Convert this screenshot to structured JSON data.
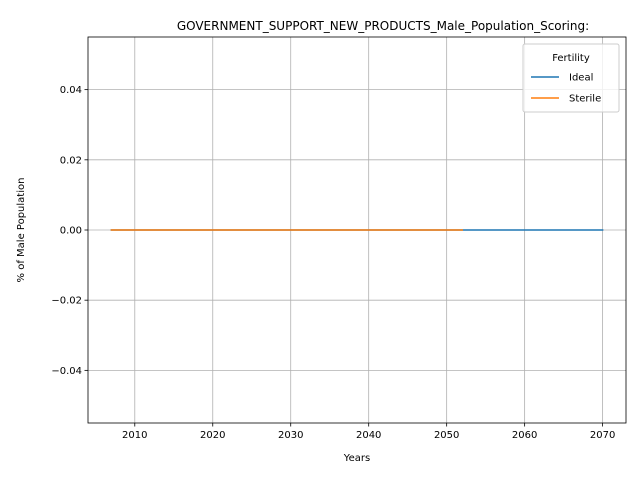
{
  "chart_data": {
    "type": "line",
    "title": "GOVERNMENT_SUPPORT_NEW_PRODUCTS_Male_Population_Scoring:",
    "xlabel": "Years",
    "ylabel": "% of Male Population",
    "xlim": [
      2004,
      2073
    ],
    "ylim": [
      -0.055,
      0.055
    ],
    "xticks": [
      2010,
      2020,
      2030,
      2040,
      2050,
      2060,
      2070
    ],
    "xtick_labels": [
      "2010",
      "2020",
      "2030",
      "2040",
      "2050",
      "2060",
      "2070"
    ],
    "yticks": [
      -0.04,
      -0.02,
      0.0,
      0.02,
      0.04
    ],
    "ytick_labels": [
      "−0.04",
      "−0.02",
      "0.00",
      "0.02",
      "0.04"
    ],
    "grid": true,
    "legend": {
      "title": "Fertility",
      "placement": "top-right"
    },
    "series": [
      {
        "name": "Ideal",
        "color": "#1f77b4",
        "x": [
          2007,
          2070
        ],
        "y": [
          0.0,
          0.0
        ]
      },
      {
        "name": "Sterile",
        "color": "#ff7f0e",
        "x": [
          2007,
          2052
        ],
        "y": [
          0.0,
          0.0
        ]
      }
    ]
  }
}
